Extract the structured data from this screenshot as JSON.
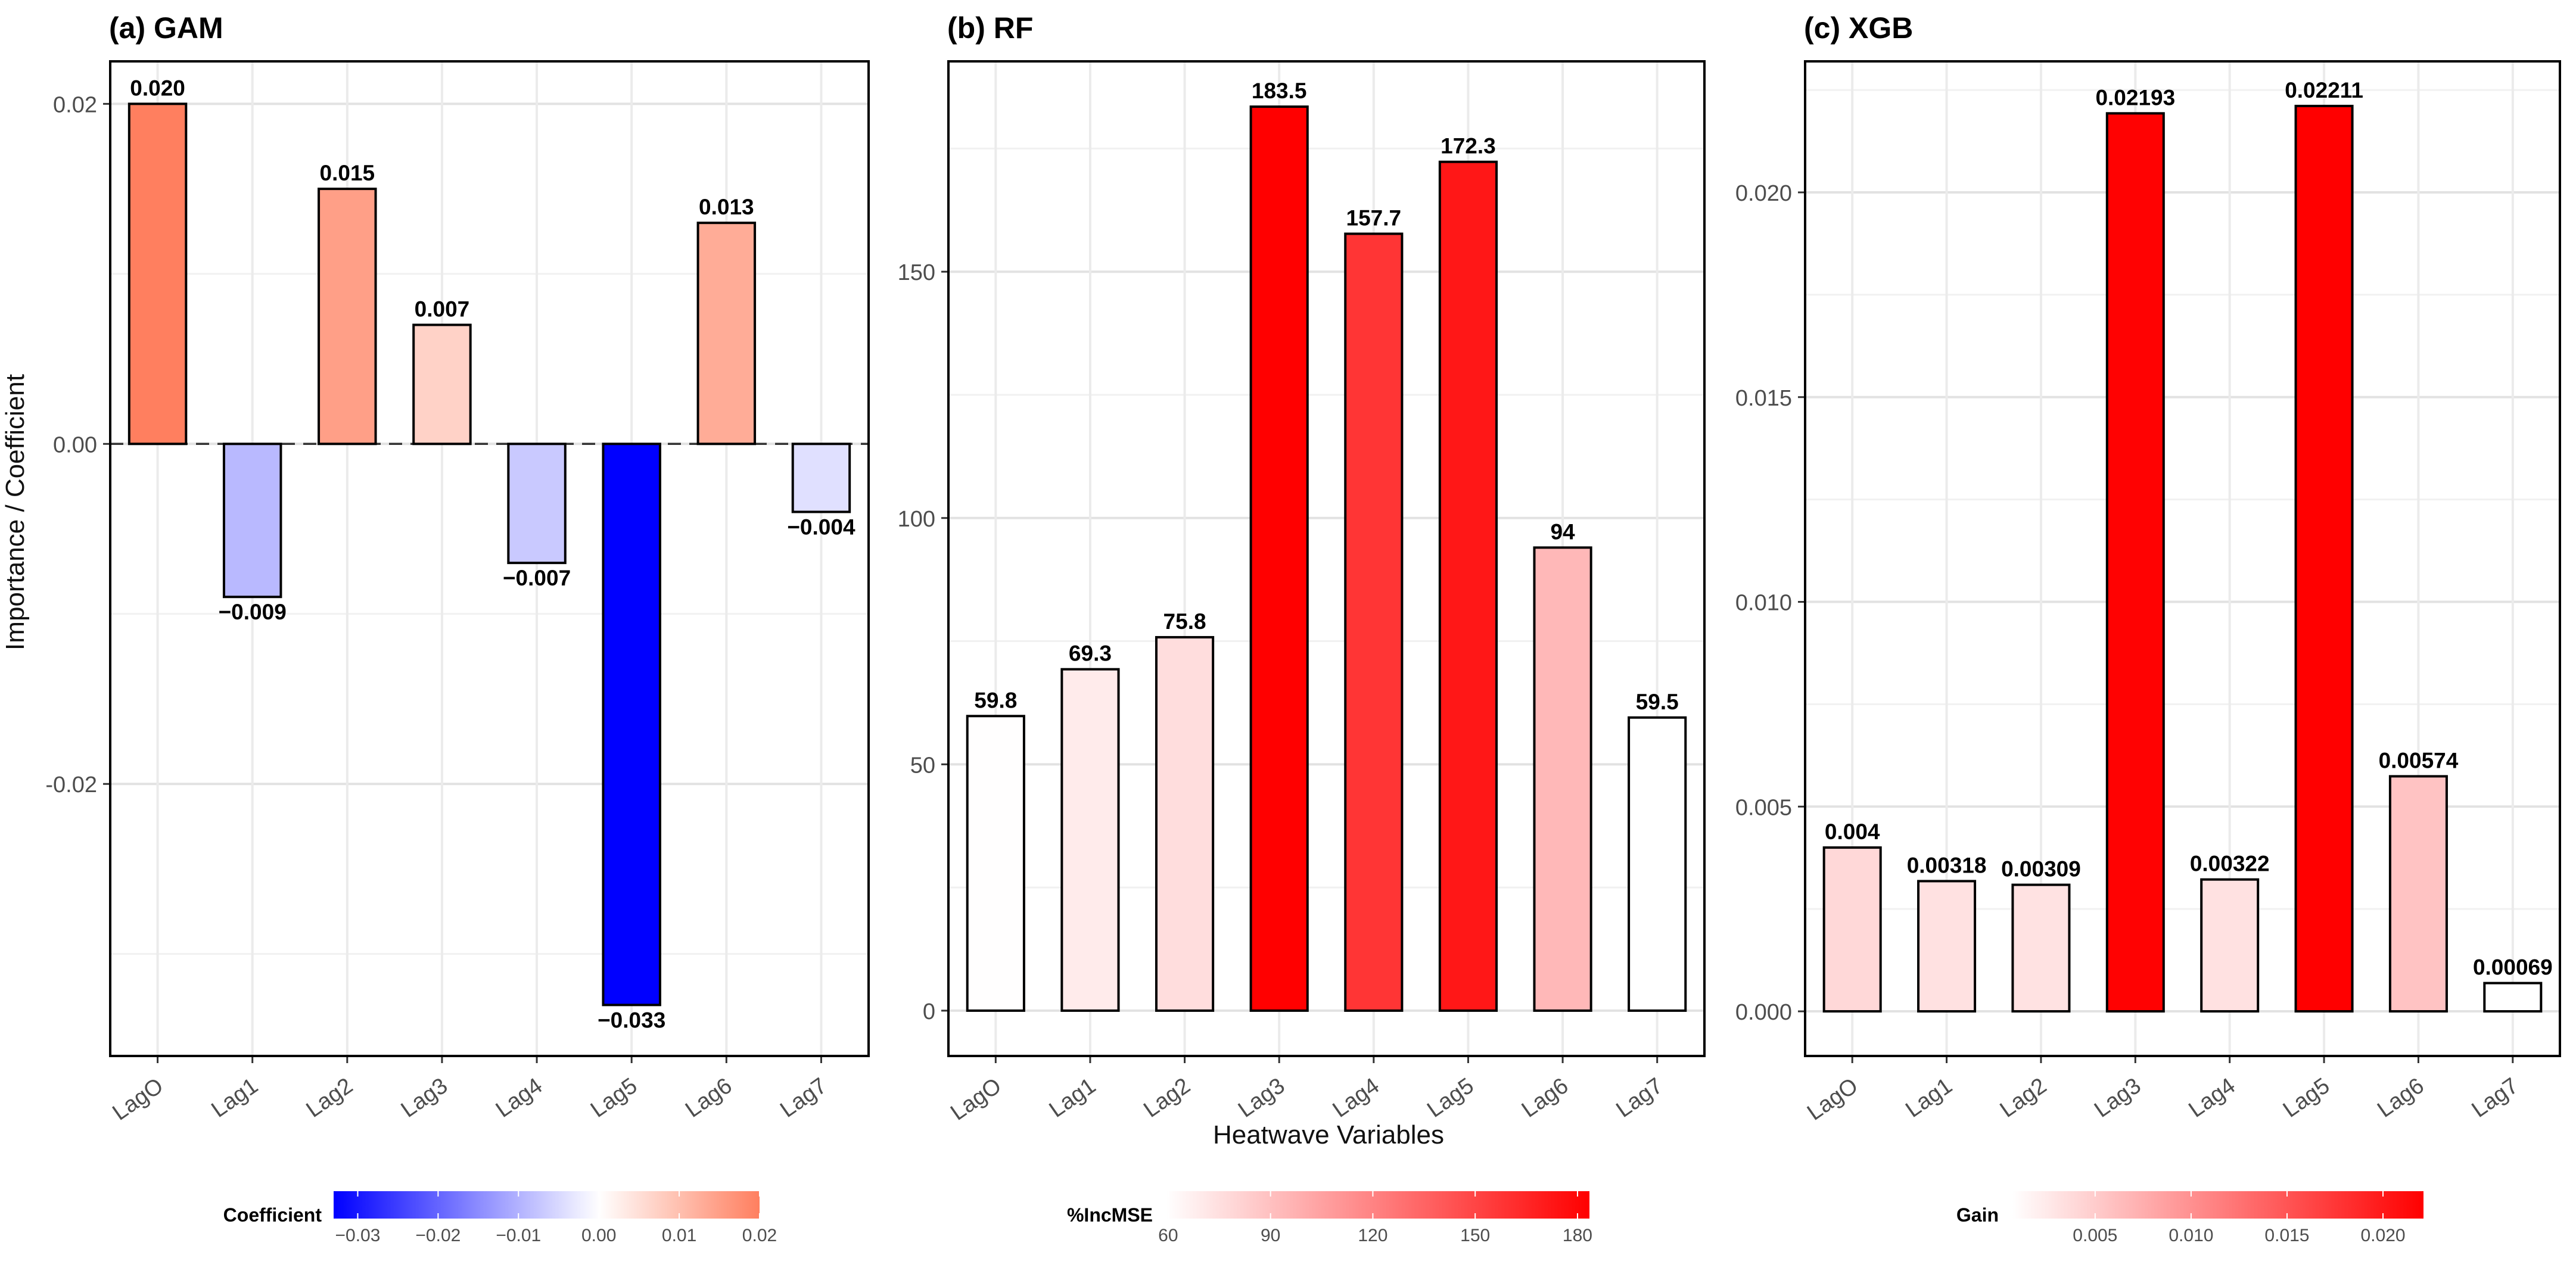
{
  "y_axis_label": "Importance / Coefficient",
  "x_axis_label": "Heatwave Variables",
  "chart_data": [
    {
      "type": "bar",
      "title": "(a) GAM",
      "categories": [
        "LagO",
        "Lag1",
        "Lag2",
        "Lag3",
        "Lag4",
        "Lag5",
        "Lag6",
        "Lag7"
      ],
      "values": [
        0.02,
        -0.009,
        0.015,
        0.007,
        -0.007,
        -0.033,
        0.013,
        -0.004
      ],
      "data_labels": [
        "0.020",
        "−0.009",
        "0.015",
        "0.007",
        "−0.007",
        "−0.033",
        "0.013",
        "−0.004"
      ],
      "ylim": [
        -0.036,
        0.0225
      ],
      "yticks": [
        -0.02,
        0.0,
        0.02
      ],
      "ytick_labels": [
        "-0.02",
        "0.00",
        "0.02"
      ],
      "reference_line": 0,
      "grid": true,
      "legend": {
        "title": "Coefficient",
        "position": "bottom",
        "range": [
          -0.033,
          0.02
        ],
        "ticks": [
          -0.03,
          -0.02,
          -0.01,
          0.0,
          0.01,
          0.02
        ],
        "tick_labels": [
          "−0.03",
          "−0.02",
          "−0.01",
          "0.00",
          "0.01",
          "0.02"
        ],
        "colors": {
          "low": "#0000ff",
          "mid": "#ffffff",
          "high": "#ff7f5f"
        }
      }
    },
    {
      "type": "bar",
      "title": "(b) RF",
      "categories": [
        "LagO",
        "Lag1",
        "Lag2",
        "Lag3",
        "Lag4",
        "Lag5",
        "Lag6",
        "Lag7"
      ],
      "values": [
        59.8,
        69.3,
        75.8,
        183.5,
        157.7,
        172.3,
        94,
        59.5
      ],
      "data_labels": [
        "59.8",
        "69.3",
        "75.8",
        "183.5",
        "157.7",
        "172.3",
        "94",
        "59.5"
      ],
      "ylim": [
        -9.2,
        192.7
      ],
      "yticks": [
        0,
        50,
        100,
        150
      ],
      "ytick_labels": [
        "0",
        "50",
        "100",
        "150"
      ],
      "grid": true,
      "legend": {
        "title": "%IncMSE",
        "position": "bottom",
        "range": [
          59.5,
          183.5
        ],
        "ticks": [
          60,
          90,
          120,
          150,
          180
        ],
        "tick_labels": [
          "60",
          "90",
          "120",
          "150",
          "180"
        ],
        "colors": {
          "low": "#ffffff",
          "high": "#ff0000"
        }
      }
    },
    {
      "type": "bar",
      "title": "(c) XGB",
      "categories": [
        "LagO",
        "Lag1",
        "Lag2",
        "Lag3",
        "Lag4",
        "Lag5",
        "Lag6",
        "Lag7"
      ],
      "values": [
        0.004,
        0.00318,
        0.00309,
        0.02193,
        0.00322,
        0.02211,
        0.00574,
        0.00069
      ],
      "data_labels": [
        "0.004",
        "0.00318",
        "0.00309",
        "0.02193",
        "0.00322",
        "0.02211",
        "0.00574",
        "0.00069"
      ],
      "ylim": [
        -0.00109,
        0.0232
      ],
      "yticks": [
        0.0,
        0.005,
        0.01,
        0.015,
        0.02
      ],
      "ytick_labels": [
        "0.000",
        "0.005",
        "0.010",
        "0.015",
        "0.020"
      ],
      "grid": true,
      "legend": {
        "title": "Gain",
        "position": "bottom",
        "range": [
          0.00069,
          0.02211
        ],
        "ticks": [
          0.005,
          0.01,
          0.015,
          0.02
        ],
        "tick_labels": [
          "0.005",
          "0.010",
          "0.015",
          "0.020"
        ],
        "colors": {
          "low": "#ffffff",
          "high": "#ff0000"
        }
      }
    }
  ]
}
